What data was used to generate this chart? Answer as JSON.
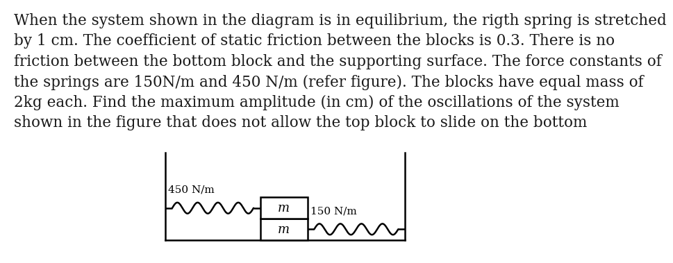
{
  "text_lines": [
    "When the system shown in the diagram is in equilibrium, the rigth spring is stretched",
    "by 1 cm. The coefficient of static friction between the blocks is 0.3. There is no",
    "friction between the bottom block and the supporting surface. The force constants of",
    "the springs are 150N/m and 450 N/m (refer figure). The blocks have equal mass of",
    "2kg each. Find the maximum amplitude (in cm) of the oscillations of the system",
    "shown in the figure that does not allow the top block to slide on the bottom"
  ],
  "text_color": "#1a1a1a",
  "background_color": "#ffffff",
  "font_size": 15.5,
  "diagram": {
    "spring1_label": "450 N/m",
    "spring2_label": "150 N/m",
    "block_label_top": "m",
    "block_label_bottom": "m"
  }
}
